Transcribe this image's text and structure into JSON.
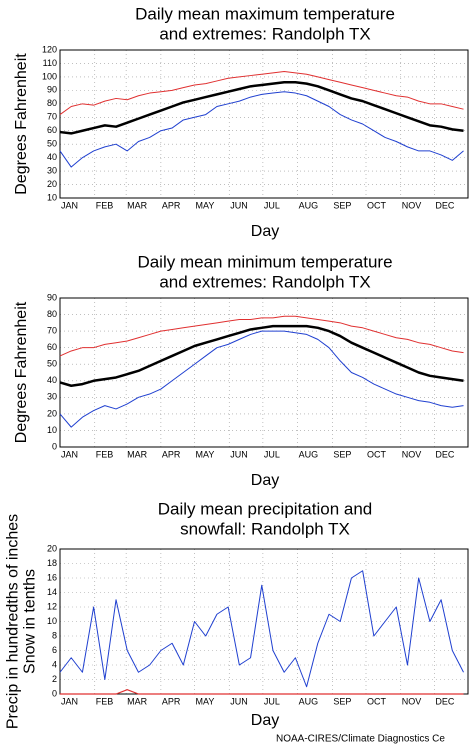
{
  "chart_data": [
    {
      "type": "line",
      "title": [
        "Daily mean maximum temperature",
        "and extremes: Randolph TX"
      ],
      "ylabel": [
        "Degrees Fahrenheit"
      ],
      "xlabel": "Day",
      "x": [
        1,
        11,
        21,
        31,
        41,
        51,
        61,
        71,
        81,
        91,
        101,
        111,
        121,
        131,
        141,
        151,
        161,
        171,
        181,
        191,
        201,
        211,
        221,
        231,
        241,
        251,
        261,
        271,
        281,
        291,
        301,
        311,
        321,
        331,
        341,
        351,
        361
      ],
      "xlim": [
        1,
        365
      ],
      "xticks": [
        {
          "value": 1,
          "label": "JAN"
        },
        {
          "value": 32,
          "label": "FEB"
        },
        {
          "value": 60,
          "label": "MAR"
        },
        {
          "value": 91,
          "label": "APR"
        },
        {
          "value": 121,
          "label": "MAY"
        },
        {
          "value": 152,
          "label": "JUN"
        },
        {
          "value": 182,
          "label": "JUL"
        },
        {
          "value": 213,
          "label": "AUG"
        },
        {
          "value": 244,
          "label": "SEP"
        },
        {
          "value": 274,
          "label": "OCT"
        },
        {
          "value": 305,
          "label": "NOV"
        },
        {
          "value": 335,
          "label": "DEC"
        }
      ],
      "ylim": [
        10,
        120
      ],
      "yticks": [
        10,
        20,
        30,
        40,
        50,
        60,
        70,
        80,
        90,
        100,
        110,
        120
      ],
      "grid": true,
      "series": [
        {
          "color": "#e03030",
          "width": 1,
          "values": [
            72,
            78,
            80,
            79,
            82,
            84,
            83,
            86,
            88,
            89,
            90,
            92,
            94,
            95,
            97,
            99,
            100,
            101,
            102,
            103,
            104,
            103,
            102,
            100,
            98,
            96,
            94,
            92,
            90,
            88,
            86,
            85,
            82,
            80,
            80,
            78,
            76
          ]
        },
        {
          "color": "#2040d0",
          "width": 1,
          "values": [
            45,
            33,
            40,
            45,
            48,
            50,
            45,
            52,
            55,
            60,
            62,
            68,
            70,
            72,
            78,
            80,
            82,
            85,
            87,
            88,
            89,
            88,
            86,
            82,
            78,
            72,
            68,
            65,
            60,
            55,
            52,
            48,
            45,
            45,
            42,
            38,
            45
          ]
        },
        {
          "color": "#000000",
          "width": 2.5,
          "values": [
            59,
            58,
            60,
            62,
            64,
            63,
            66,
            69,
            72,
            75,
            78,
            81,
            83,
            85,
            87,
            89,
            91,
            93,
            94,
            95,
            96,
            96,
            95,
            93,
            90,
            87,
            84,
            82,
            79,
            76,
            73,
            70,
            67,
            64,
            63,
            61,
            60
          ]
        }
      ]
    },
    {
      "type": "line",
      "title": [
        "Daily mean minimum temperature",
        "and extremes: Randolph TX"
      ],
      "ylabel": [
        "Degrees Fahrenheit"
      ],
      "xlabel": "Day",
      "x": [
        1,
        11,
        21,
        31,
        41,
        51,
        61,
        71,
        81,
        91,
        101,
        111,
        121,
        131,
        141,
        151,
        161,
        171,
        181,
        191,
        201,
        211,
        221,
        231,
        241,
        251,
        261,
        271,
        281,
        291,
        301,
        311,
        321,
        331,
        341,
        351,
        361
      ],
      "xlim": [
        1,
        365
      ],
      "xticks": [
        {
          "value": 1,
          "label": "JAN"
        },
        {
          "value": 32,
          "label": "FEB"
        },
        {
          "value": 60,
          "label": "MAR"
        },
        {
          "value": 91,
          "label": "APR"
        },
        {
          "value": 121,
          "label": "MAY"
        },
        {
          "value": 152,
          "label": "JUN"
        },
        {
          "value": 182,
          "label": "JUL"
        },
        {
          "value": 213,
          "label": "AUG"
        },
        {
          "value": 244,
          "label": "SEP"
        },
        {
          "value": 274,
          "label": "OCT"
        },
        {
          "value": 305,
          "label": "NOV"
        },
        {
          "value": 335,
          "label": "DEC"
        }
      ],
      "ylim": [
        0,
        90
      ],
      "yticks": [
        0,
        10,
        20,
        30,
        40,
        50,
        60,
        70,
        80,
        90
      ],
      "grid": true,
      "series": [
        {
          "color": "#e03030",
          "width": 1,
          "values": [
            55,
            58,
            60,
            60,
            62,
            63,
            64,
            66,
            68,
            70,
            71,
            72,
            73,
            74,
            75,
            76,
            77,
            77,
            78,
            78,
            79,
            79,
            78,
            77,
            76,
            75,
            73,
            72,
            70,
            68,
            66,
            65,
            63,
            62,
            60,
            58,
            57
          ]
        },
        {
          "color": "#2040d0",
          "width": 1,
          "values": [
            20,
            12,
            18,
            22,
            25,
            23,
            26,
            30,
            32,
            35,
            40,
            45,
            50,
            55,
            60,
            62,
            65,
            68,
            70,
            70,
            70,
            69,
            68,
            65,
            60,
            52,
            45,
            42,
            38,
            35,
            32,
            30,
            28,
            27,
            25,
            24,
            25
          ]
        },
        {
          "color": "#000000",
          "width": 2.5,
          "values": [
            39,
            37,
            38,
            40,
            41,
            42,
            44,
            46,
            49,
            52,
            55,
            58,
            61,
            63,
            65,
            67,
            69,
            71,
            72,
            73,
            73,
            73,
            73,
            72,
            70,
            67,
            63,
            60,
            57,
            54,
            51,
            48,
            45,
            43,
            42,
            41,
            40
          ]
        }
      ]
    },
    {
      "type": "line",
      "title": [
        "Daily mean precipitation and",
        "snowfall: Randolph TX"
      ],
      "ylabel": [
        "Precip in hundredths of inches",
        "Snow in tenths"
      ],
      "xlabel": "Day",
      "x": [
        1,
        11,
        21,
        31,
        41,
        51,
        61,
        71,
        81,
        91,
        101,
        111,
        121,
        131,
        141,
        151,
        161,
        171,
        181,
        191,
        201,
        211,
        221,
        231,
        241,
        251,
        261,
        271,
        281,
        291,
        301,
        311,
        321,
        331,
        341,
        351,
        361
      ],
      "xlim": [
        1,
        365
      ],
      "xticks": [
        {
          "value": 1,
          "label": "JAN"
        },
        {
          "value": 32,
          "label": "FEB"
        },
        {
          "value": 60,
          "label": "MAR"
        },
        {
          "value": 91,
          "label": "APR"
        },
        {
          "value": 121,
          "label": "MAY"
        },
        {
          "value": 152,
          "label": "JUN"
        },
        {
          "value": 182,
          "label": "JUL"
        },
        {
          "value": 213,
          "label": "AUG"
        },
        {
          "value": 244,
          "label": "SEP"
        },
        {
          "value": 274,
          "label": "OCT"
        },
        {
          "value": 305,
          "label": "NOV"
        },
        {
          "value": 335,
          "label": "DEC"
        }
      ],
      "ylim": [
        0,
        20
      ],
      "yticks": [
        0,
        2,
        4,
        6,
        8,
        10,
        12,
        14,
        16,
        18,
        20
      ],
      "grid": true,
      "series": [
        {
          "color": "#2040d0",
          "width": 1,
          "values": [
            3,
            5,
            3,
            12,
            2,
            13,
            6,
            3,
            4,
            6,
            7,
            4,
            10,
            8,
            11,
            12,
            4,
            5,
            15,
            6,
            3,
            5,
            1,
            7,
            11,
            10,
            16,
            17,
            8,
            10,
            12,
            4,
            16,
            10,
            13,
            6,
            3
          ]
        },
        {
          "color": "#e03030",
          "width": 1.2,
          "values": [
            0,
            0,
            0,
            0,
            0,
            0,
            0.6,
            0,
            0,
            0,
            0,
            0,
            0,
            0,
            0,
            0,
            0,
            0,
            0,
            0,
            0,
            0,
            0,
            0,
            0,
            0,
            0,
            0,
            0,
            0,
            0,
            0,
            0,
            0,
            0,
            0,
            0
          ]
        }
      ]
    }
  ],
  "footer": "NOAA-CIRES/Climate Diagnostics Ce"
}
